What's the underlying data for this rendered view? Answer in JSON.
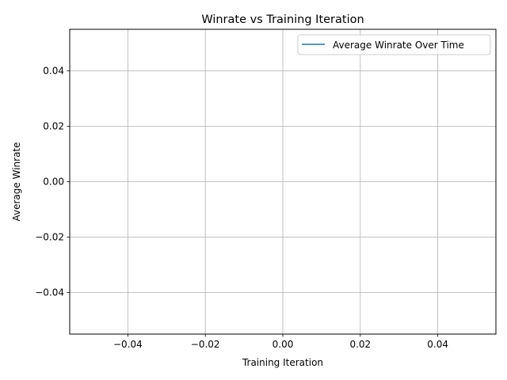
{
  "chart_data": {
    "type": "line",
    "title": "Winrate vs Training Iteration",
    "xlabel": "Training Iteration",
    "ylabel": "Average Winrate",
    "xlim": [
      -0.055,
      0.055
    ],
    "ylim": [
      -0.055,
      0.055
    ],
    "xticks": [
      -0.04,
      -0.02,
      0.0,
      0.02,
      0.04
    ],
    "yticks": [
      -0.04,
      -0.02,
      0.0,
      0.02,
      0.04
    ],
    "xtick_labels": [
      "−0.04",
      "−0.02",
      "0.00",
      "0.02",
      "0.04"
    ],
    "ytick_labels": [
      "−0.04",
      "−0.02",
      "0.00",
      "0.02",
      "0.04"
    ],
    "grid": true,
    "legend_position": "top-right",
    "series": [
      {
        "name": "Average Winrate Over Time",
        "color": "#1f77b4",
        "x": [],
        "y": []
      }
    ]
  }
}
